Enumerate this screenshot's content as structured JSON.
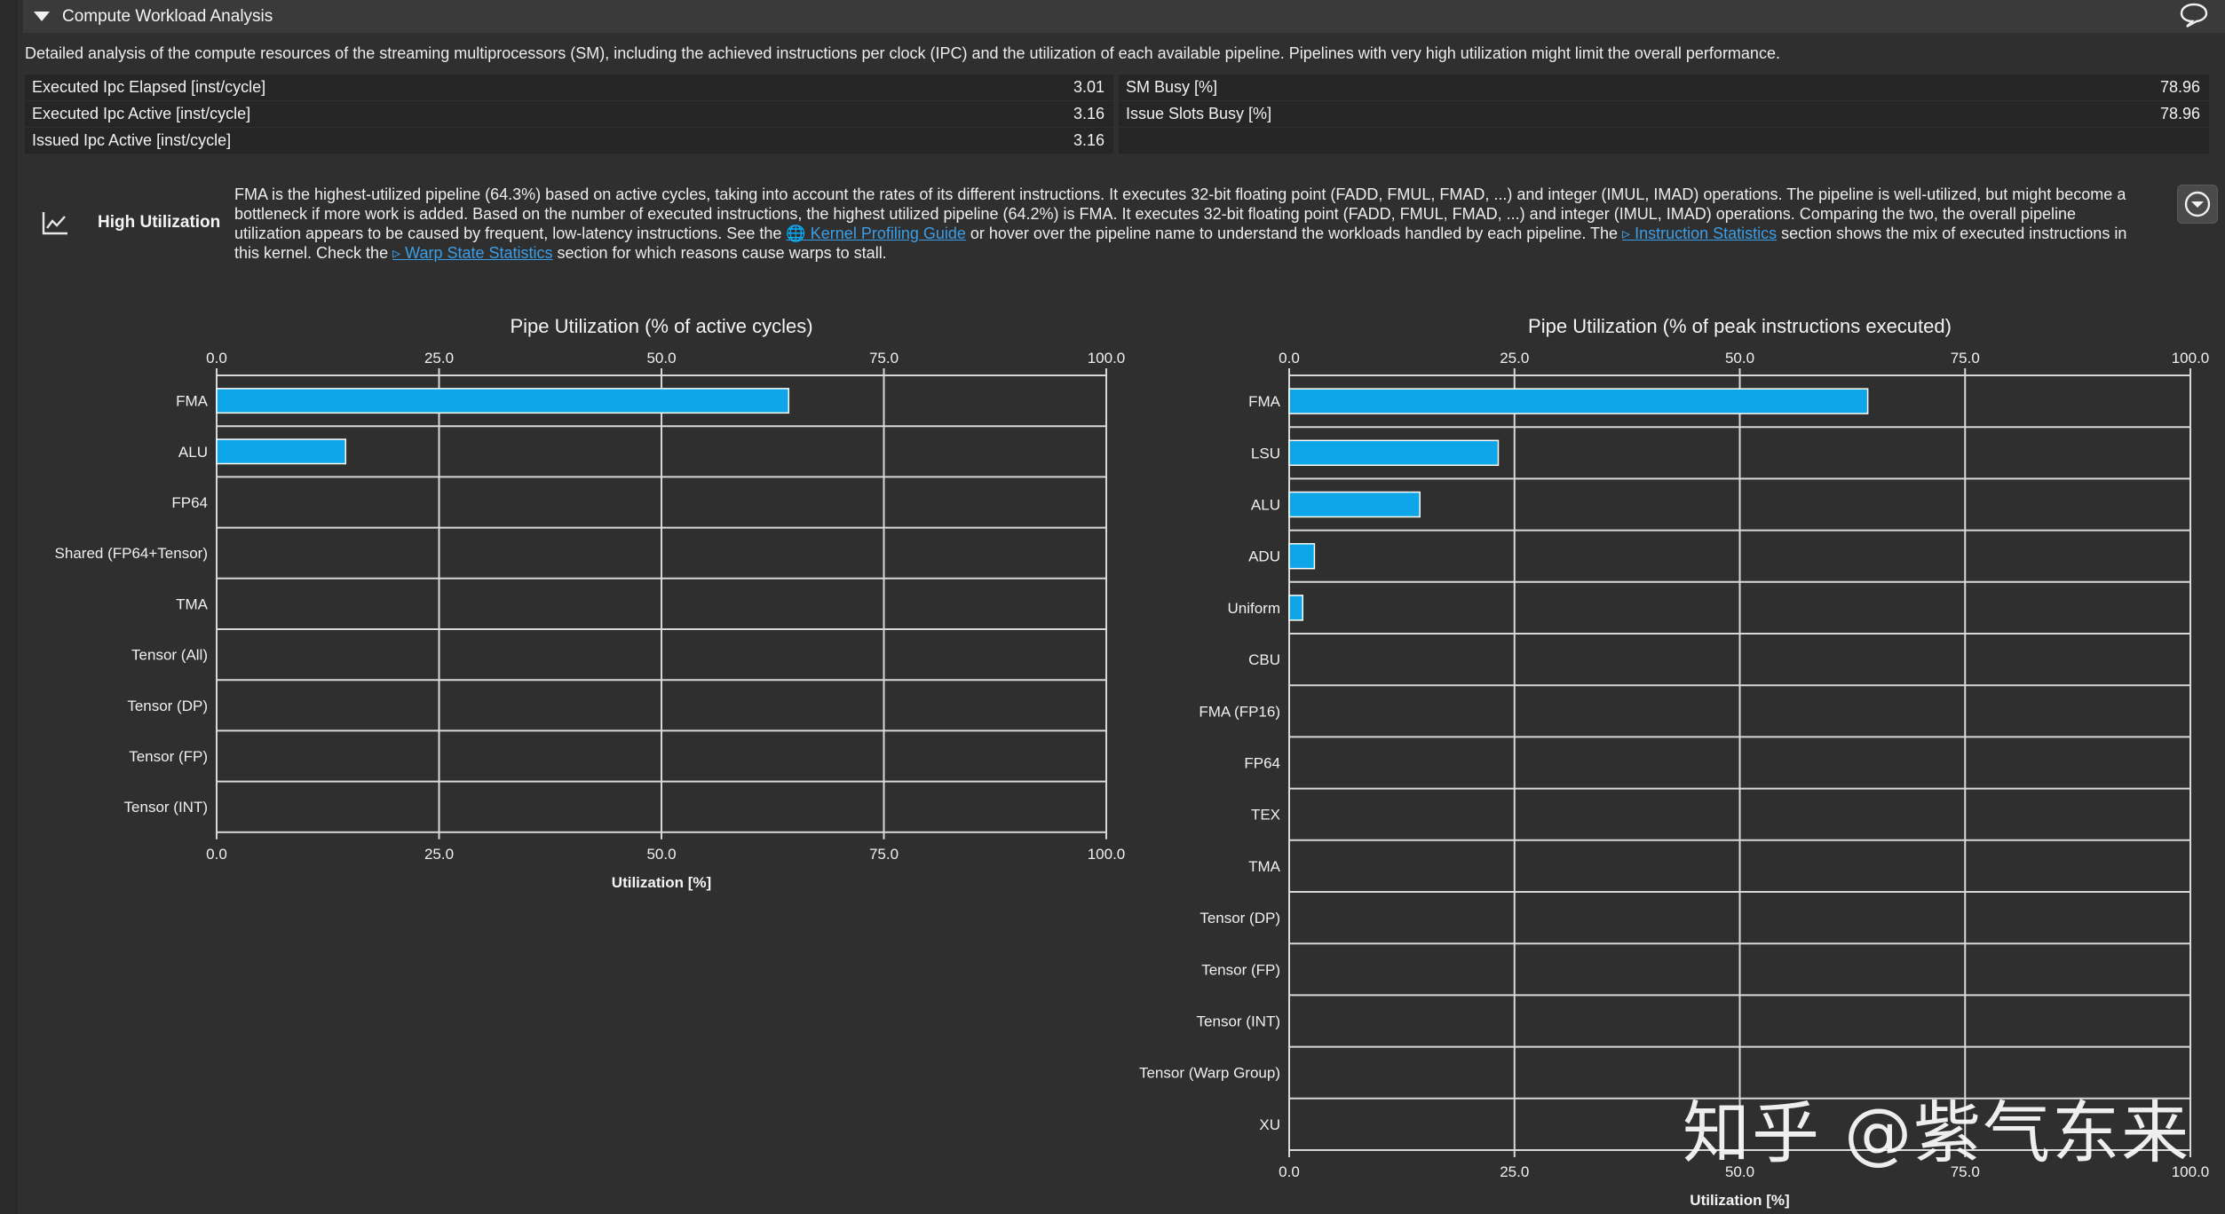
{
  "section": {
    "title": "Compute Workload Analysis"
  },
  "description": "Detailed analysis of the compute resources of the streaming multiprocessors (SM), including the achieved instructions per clock (IPC) and the utilization of each available pipeline. Pipelines with very high utilization might limit the overall performance.",
  "metrics": {
    "left": [
      {
        "label": "Executed Ipc Elapsed [inst/cycle]",
        "value": "3.01"
      },
      {
        "label": "Executed Ipc Active [inst/cycle]",
        "value": "3.16"
      },
      {
        "label": "Issued Ipc Active [inst/cycle]",
        "value": "3.16"
      }
    ],
    "right": [
      {
        "label": "SM Busy [%]",
        "value": "78.96"
      },
      {
        "label": "Issue Slots Busy [%]",
        "value": "78.96"
      }
    ]
  },
  "high_utilization": {
    "title": "High Utilization",
    "text_1": "FMA is the highest-utilized pipeline (64.3%) based on active cycles, taking into account the rates of its different instructions. It executes 32-bit floating point (FADD, FMUL, FMAD, ...) and integer (IMUL, IMAD) operations. The pipeline is well-utilized, but might become a bottleneck if more work is added. Based on the number of executed instructions, the highest utilized pipeline (64.2%) is FMA. It executes 32-bit floating point (FADD, FMUL, FMAD, ...) and integer (IMUL, IMAD) operations. Comparing the two, the overall pipeline utilization appears to be caused by frequent, low-latency instructions. See the ",
    "link_1": "🌐 Kernel Profiling Guide",
    "text_2": " or hover over the pipeline name to understand the workloads handled by each pipeline. The ",
    "link_2": "▹ Instruction Statistics",
    "text_3": " section shows the mix of executed instructions in this kernel. Check the ",
    "link_3": "▹ Warp State Statistics",
    "text_4": " section for which reasons cause warps to stall."
  },
  "colors": {
    "bar": "#0ea5e9",
    "grid": "#d8d8d8",
    "background": "#2f2f2f"
  },
  "watermark": "知乎 @紫气东来",
  "chart_data": [
    {
      "type": "bar",
      "orientation": "horizontal",
      "title": "Pipe Utilization (% of active cycles)",
      "categories": [
        "FMA",
        "ALU",
        "FP64",
        "Shared (FP64+Tensor)",
        "TMA",
        "Tensor (All)",
        "Tensor (DP)",
        "Tensor (FP)",
        "Tensor (INT)"
      ],
      "values": [
        64.3,
        14.5,
        0,
        0,
        0,
        0,
        0,
        0,
        0
      ],
      "xlabel": "Utilization [%]",
      "xlim": [
        0,
        100
      ],
      "ticks": [
        "0.0",
        "25.0",
        "50.0",
        "75.0",
        "100.0"
      ],
      "grid": true
    },
    {
      "type": "bar",
      "orientation": "horizontal",
      "title": "Pipe Utilization (% of peak instructions executed)",
      "categories": [
        "FMA",
        "LSU",
        "ALU",
        "ADU",
        "Uniform",
        "CBU",
        "FMA (FP16)",
        "FP64",
        "TEX",
        "TMA",
        "Tensor (DP)",
        "Tensor (FP)",
        "Tensor (INT)",
        "Tensor (Warp Group)",
        "XU"
      ],
      "values": [
        64.2,
        23.2,
        14.5,
        2.8,
        1.5,
        0,
        0,
        0,
        0,
        0,
        0,
        0,
        0,
        0,
        0
      ],
      "xlabel": "Utilization [%]",
      "xlim": [
        0,
        100
      ],
      "ticks": [
        "0.0",
        "25.0",
        "50.0",
        "75.0",
        "100.0"
      ],
      "grid": true
    }
  ]
}
